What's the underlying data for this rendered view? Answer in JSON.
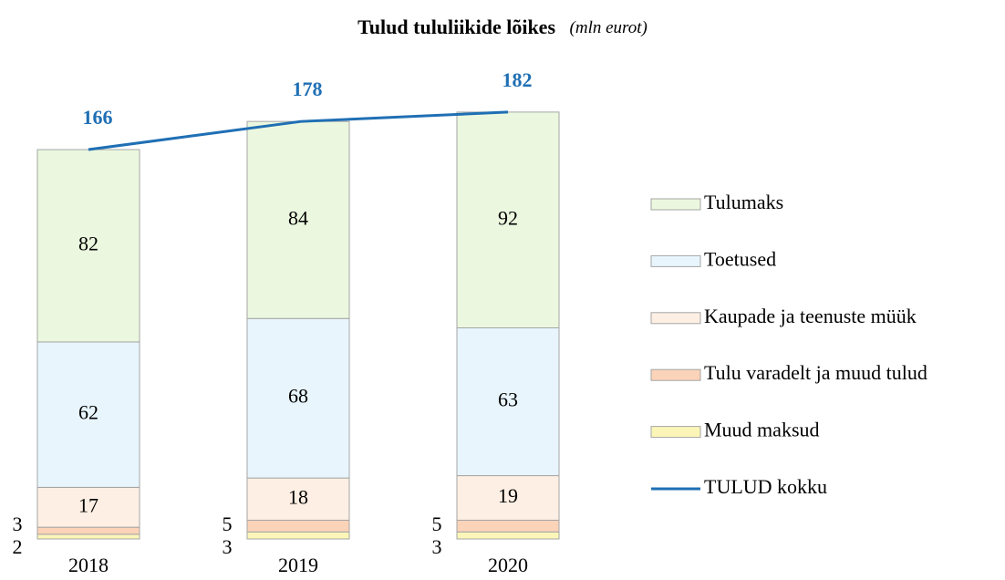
{
  "chart_data": {
    "type": "bar",
    "stacked": true,
    "title": "Tulud tululiikide lõikes",
    "subtitle": "(mln eurot)",
    "categories": [
      "2018",
      "2019",
      "2020"
    ],
    "series": [
      {
        "name": "Muud maksud",
        "color": "#fbf6b8",
        "values": [
          2,
          3,
          3
        ]
      },
      {
        "name": "Tulu varadelt ja muud tulud",
        "color": "#fbd3b8",
        "values": [
          3,
          5,
          5
        ]
      },
      {
        "name": "Kaupade ja teenuste müük",
        "color": "#fdefe3",
        "values": [
          17,
          18,
          19
        ]
      },
      {
        "name": "Toetused",
        "color": "#e8f5fd",
        "values": [
          62,
          68,
          63
        ]
      },
      {
        "name": "Tulumaks",
        "color": "#ebf8df",
        "values": [
          82,
          84,
          92
        ]
      },
      {
        "name": "TULUD kokku",
        "type": "line",
        "color": "#1f6fb4",
        "values": [
          166,
          178,
          182
        ]
      }
    ],
    "legend": "right"
  }
}
